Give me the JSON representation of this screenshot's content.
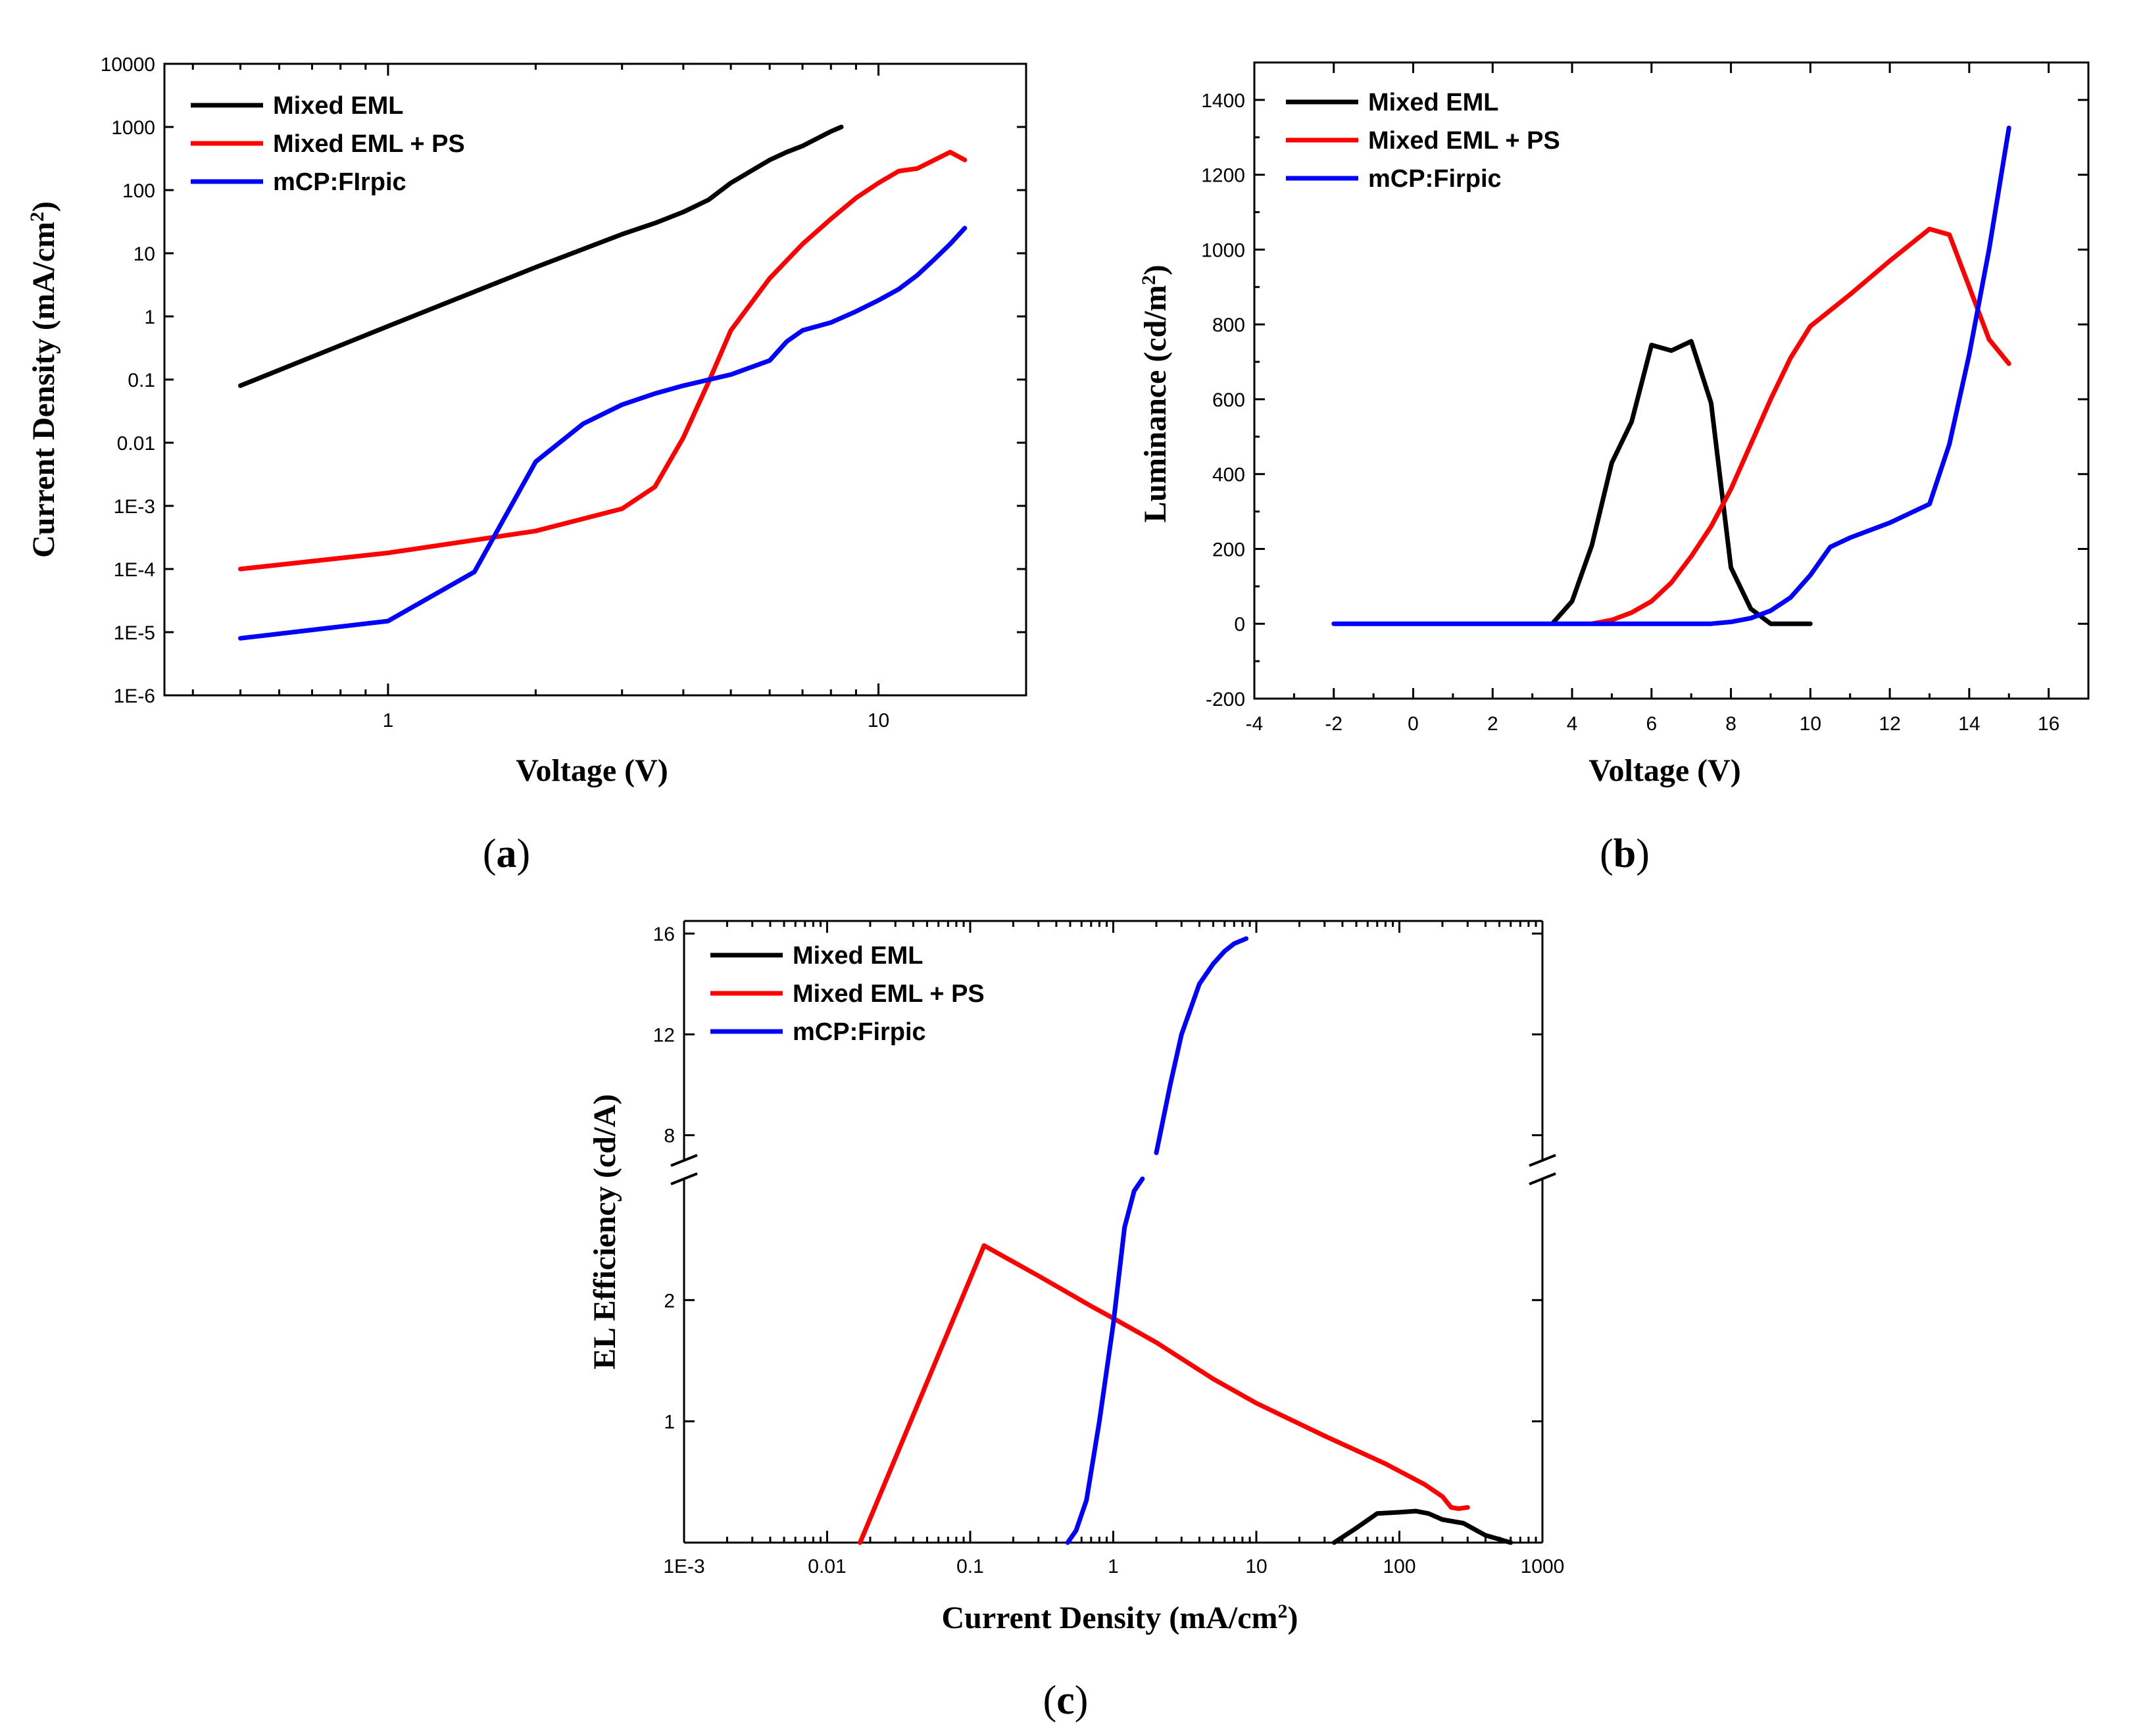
{
  "panels": [
    {
      "label_open": "(",
      "label_letter": "a",
      "label_close": ")"
    },
    {
      "label_open": "(",
      "label_letter": "b",
      "label_close": ")"
    },
    {
      "label_open": "(",
      "label_letter": "c",
      "label_close": ")"
    }
  ],
  "chart_data": [
    {
      "id": "a",
      "type": "line",
      "xscale": "log",
      "yscale": "log",
      "xlim": [
        0.35,
        20
      ],
      "ylim": [
        1e-06,
        10000
      ],
      "xticks": [
        {
          "value": 1,
          "label": "1"
        },
        {
          "value": 10,
          "label": "10"
        }
      ],
      "yticks": [
        {
          "value": 10000,
          "label": "10000"
        },
        {
          "value": 1000,
          "label": "1000"
        },
        {
          "value": 100,
          "label": "100"
        },
        {
          "value": 10,
          "label": "10"
        },
        {
          "value": 1,
          "label": "1"
        },
        {
          "value": 0.1,
          "label": "0.1"
        },
        {
          "value": 0.01,
          "label": "0.01"
        },
        {
          "value": 0.001,
          "label": "1E-3"
        },
        {
          "value": 0.0001,
          "label": "1E-4"
        },
        {
          "value": 1e-05,
          "label": "1E-5"
        },
        {
          "value": 1e-06,
          "label": "1E-6"
        }
      ],
      "xlabel": "Voltage (V)",
      "ylabel": {
        "prefix": "Current Density (mA/cm",
        "sup": "2",
        "suffix": ")"
      },
      "legend_position": "top-left",
      "series": [
        {
          "name": "Mixed EML",
          "color": "#000000",
          "x": [
            0.5,
            1,
            2,
            3,
            3.5,
            4,
            4.5,
            5,
            6,
            6.5,
            7,
            8,
            8.4
          ],
          "y": [
            0.08,
            0.7,
            6,
            20,
            30,
            45,
            70,
            130,
            300,
            400,
            500,
            850,
            1000
          ]
        },
        {
          "name": "Mixed EML + PS",
          "color": "#ff0000",
          "x": [
            0.5,
            1,
            2,
            3,
            3.5,
            4,
            4.5,
            5,
            6,
            7,
            8,
            9,
            10,
            11,
            12,
            13,
            14,
            15
          ],
          "y": [
            0.0001,
            0.00018,
            0.0004,
            0.0009,
            0.002,
            0.012,
            0.09,
            0.6,
            4,
            14,
            35,
            75,
            130,
            200,
            220,
            300,
            400,
            300
          ]
        },
        {
          "name": "mCP:FIrpic",
          "color": "#0000ff",
          "x": [
            0.5,
            1,
            1.5,
            2,
            2.5,
            3,
            3.5,
            4,
            5,
            6,
            6.5,
            7,
            8,
            9,
            10,
            11,
            12,
            13,
            14,
            15
          ],
          "y": [
            8e-06,
            1.5e-05,
            9e-05,
            0.005,
            0.02,
            0.04,
            0.06,
            0.08,
            0.12,
            0.2,
            0.4,
            0.6,
            0.8,
            1.2,
            1.8,
            2.7,
            4.5,
            8,
            14,
            25
          ]
        }
      ]
    },
    {
      "id": "b",
      "type": "line",
      "xscale": "linear",
      "yscale": "linear",
      "xlim": [
        -4,
        17
      ],
      "ylim": [
        -200,
        1500
      ],
      "xticks": [
        {
          "value": -4,
          "label": "-4"
        },
        {
          "value": -2,
          "label": "-2"
        },
        {
          "value": 0,
          "label": "0"
        },
        {
          "value": 2,
          "label": "2"
        },
        {
          "value": 4,
          "label": "4"
        },
        {
          "value": 6,
          "label": "6"
        },
        {
          "value": 8,
          "label": "8"
        },
        {
          "value": 10,
          "label": "10"
        },
        {
          "value": 12,
          "label": "12"
        },
        {
          "value": 14,
          "label": "14"
        },
        {
          "value": 16,
          "label": "16"
        }
      ],
      "yticks": [
        {
          "value": -200,
          "label": "-200"
        },
        {
          "value": 0,
          "label": "0"
        },
        {
          "value": 200,
          "label": "200"
        },
        {
          "value": 400,
          "label": "400"
        },
        {
          "value": 600,
          "label": "600"
        },
        {
          "value": 800,
          "label": "800"
        },
        {
          "value": 1000,
          "label": "1000"
        },
        {
          "value": 1200,
          "label": "1200"
        },
        {
          "value": 1400,
          "label": "1400"
        }
      ],
      "xlabel": "Voltage (V)",
      "ylabel": {
        "prefix": "Luminance (cd/m",
        "sup": "2",
        "suffix": ")"
      },
      "legend_position": "top-left",
      "series": [
        {
          "name": "Mixed EML",
          "color": "#000000",
          "x": [
            3.5,
            4,
            4.5,
            5,
            5.5,
            6,
            6.5,
            7,
            7.5,
            8,
            8.5,
            9,
            10
          ],
          "y": [
            0,
            60,
            210,
            430,
            540,
            745,
            730,
            755,
            590,
            150,
            40,
            0,
            0
          ]
        },
        {
          "name": "Mixed EML + PS",
          "color": "#ff0000",
          "x": [
            4.5,
            5,
            5.5,
            6,
            6.5,
            7,
            7.5,
            8,
            8.5,
            9,
            9.5,
            10,
            11,
            12,
            13,
            13.5,
            14,
            14.5,
            15
          ],
          "y": [
            0,
            10,
            30,
            60,
            110,
            180,
            260,
            360,
            480,
            600,
            710,
            795,
            880,
            970,
            1055,
            1040,
            900,
            760,
            695
          ]
        },
        {
          "name": "mCP:Firpic",
          "color": "#0000ff",
          "x": [
            -2,
            7.5,
            8,
            8.5,
            9,
            9.5,
            10,
            10.5,
            11,
            12,
            13,
            13.5,
            14,
            14.5,
            15
          ],
          "y": [
            0,
            0,
            5,
            15,
            35,
            70,
            130,
            205,
            230,
            270,
            320,
            480,
            720,
            1000,
            1325
          ]
        }
      ]
    },
    {
      "id": "c",
      "type": "line",
      "xscale": "log",
      "yscale": "broken-linear",
      "xlim": [
        0.001,
        1000
      ],
      "ylim_lower": [
        0,
        3
      ],
      "ylim_upper": [
        7,
        16.5
      ],
      "xticks": [
        {
          "value": 0.001,
          "label": "1E-3"
        },
        {
          "value": 0.01,
          "label": "0.01"
        },
        {
          "value": 0.1,
          "label": "0.1"
        },
        {
          "value": 1,
          "label": "1"
        },
        {
          "value": 10,
          "label": "10"
        },
        {
          "value": 100,
          "label": "100"
        },
        {
          "value": 1000,
          "label": "1000"
        }
      ],
      "yticks": [
        {
          "value": 1,
          "label": "1"
        },
        {
          "value": 2,
          "label": "2"
        },
        {
          "value": 8,
          "label": "8"
        },
        {
          "value": 12,
          "label": "12"
        },
        {
          "value": 16,
          "label": "16"
        }
      ],
      "xlabel": {
        "prefix": "Current Density (mA/cm",
        "sup": "2",
        "suffix": ")"
      },
      "ylabel": "EL Efficiency (cd/A)",
      "legend_position": "top-left",
      "series": [
        {
          "name": "Mixed EML",
          "color": "#000000",
          "segments": [
            {
              "x": [
                35,
                50,
                70,
                100,
                130,
                160,
                200,
                280,
                400,
                600
              ],
              "y": [
                0,
                0.12,
                0.24,
                0.25,
                0.26,
                0.24,
                0.19,
                0.16,
                0.06,
                0
              ]
            }
          ]
        },
        {
          "name": "Mixed EML + PS",
          "color": "#ff0000",
          "segments": [
            {
              "x": [
                0.017,
                0.125,
                0.3,
                0.7,
                1,
                2,
                5,
                10,
                30,
                80,
                150,
                200,
                230,
                260,
                300
              ],
              "y": [
                0,
                2.45,
                2.2,
                1.95,
                1.85,
                1.65,
                1.35,
                1.15,
                0.88,
                0.65,
                0.48,
                0.38,
                0.29,
                0.28,
                0.29
              ]
            }
          ]
        },
        {
          "name": "mCP:Firpic",
          "color": "#0000ff",
          "segments": [
            {
              "x": [
                0.48,
                0.55,
                0.65,
                0.8,
                1,
                1.2,
                1.4,
                1.6
              ],
              "y": [
                0,
                0.1,
                0.35,
                1.0,
                1.8,
                2.6,
                2.9,
                3.0
              ]
            },
            {
              "x": [
                2.0,
                2.5,
                3,
                4,
                5,
                6,
                7,
                8.5
              ],
              "y": [
                7.3,
                10,
                12,
                14,
                14.8,
                15.3,
                15.6,
                15.8
              ]
            }
          ]
        }
      ]
    }
  ]
}
